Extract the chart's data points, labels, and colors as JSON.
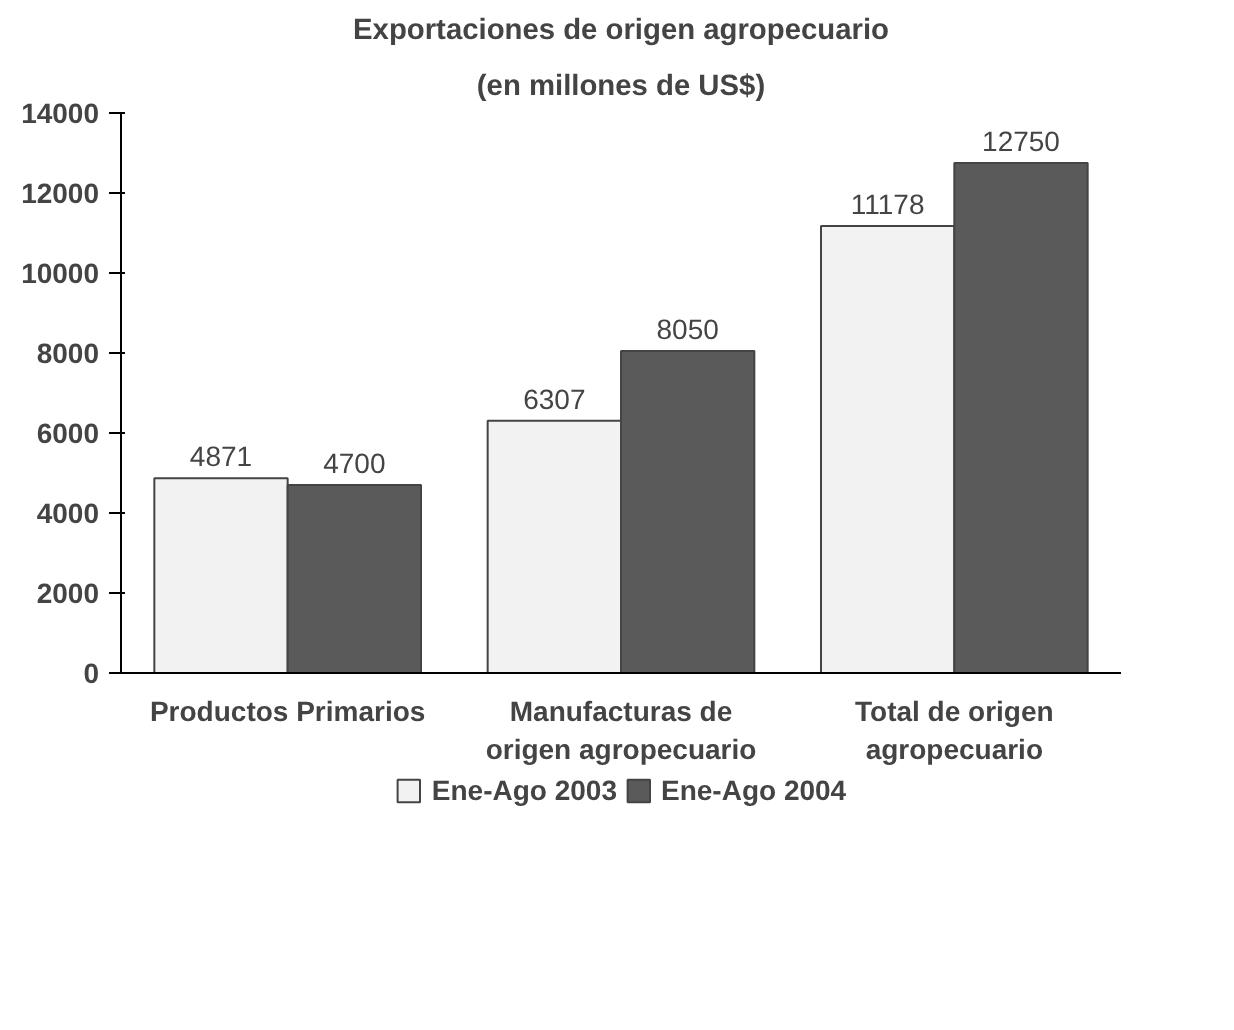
{
  "chart_data": {
    "type": "bar",
    "title": "Exportaciones de origen agropecuario",
    "subtitle": "(en millones de US$)",
    "categories": [
      "Productos Primarios",
      "Manufacturas de origen agropecuario",
      "Total de origen agropecuario"
    ],
    "series": [
      {
        "name": "Ene-Ago 2003",
        "color": "#f2f2f2",
        "values": [
          4871,
          6307,
          11178
        ]
      },
      {
        "name": "Ene-Ago 2004",
        "color": "#5a5a5a",
        "values": [
          4700,
          8050,
          12750
        ]
      }
    ],
    "ylim": [
      0,
      14000
    ],
    "yticks": [
      0,
      2000,
      4000,
      6000,
      8000,
      10000,
      12000,
      14000
    ],
    "data_labels": true,
    "grid": false,
    "legend": "bottom"
  }
}
